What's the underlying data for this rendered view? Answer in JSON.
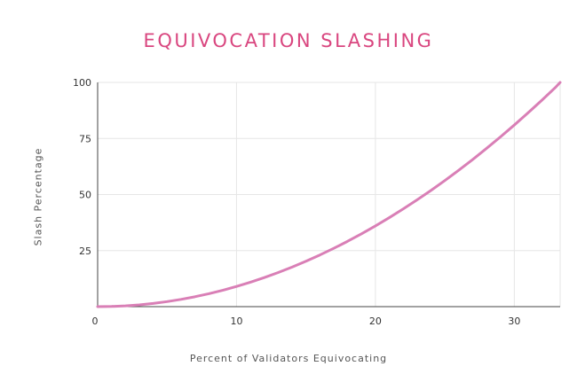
{
  "chart_data": {
    "type": "line",
    "title": "EQUIVOCATION SLASHING",
    "xlabel": "Percent of Validators Equivocating",
    "ylabel": "Slash Percentage",
    "xlim": [
      0,
      33.3
    ],
    "ylim": [
      0,
      100
    ],
    "x_ticks": [
      0,
      10,
      20,
      30
    ],
    "y_ticks": [
      25,
      50,
      75,
      100
    ],
    "grid": true,
    "series": [
      {
        "color": "#d97fb6",
        "x": [
          0,
          1,
          2,
          3,
          4,
          5,
          6,
          7,
          8,
          9,
          10,
          11,
          12,
          13,
          14,
          15,
          16,
          17,
          18,
          19,
          20,
          21,
          22,
          23,
          24,
          25,
          26,
          27,
          28,
          29,
          30,
          31,
          32,
          33,
          33.3
        ],
        "y": [
          0,
          0.09,
          0.36,
          0.81,
          1.44,
          2.25,
          3.24,
          4.41,
          5.76,
          7.29,
          9,
          10.89,
          12.96,
          15.21,
          17.64,
          20.25,
          23.04,
          26.01,
          29.16,
          32.49,
          36,
          39.69,
          43.56,
          47.61,
          51.84,
          56.25,
          60.84,
          65.61,
          70.56,
          75.69,
          81,
          86.49,
          92.16,
          98.01,
          100
        ]
      }
    ]
  },
  "colors": {
    "title": "#d9467f",
    "line": "#d97fb6",
    "grid": "#e6e6e6",
    "axis": "#444444"
  }
}
